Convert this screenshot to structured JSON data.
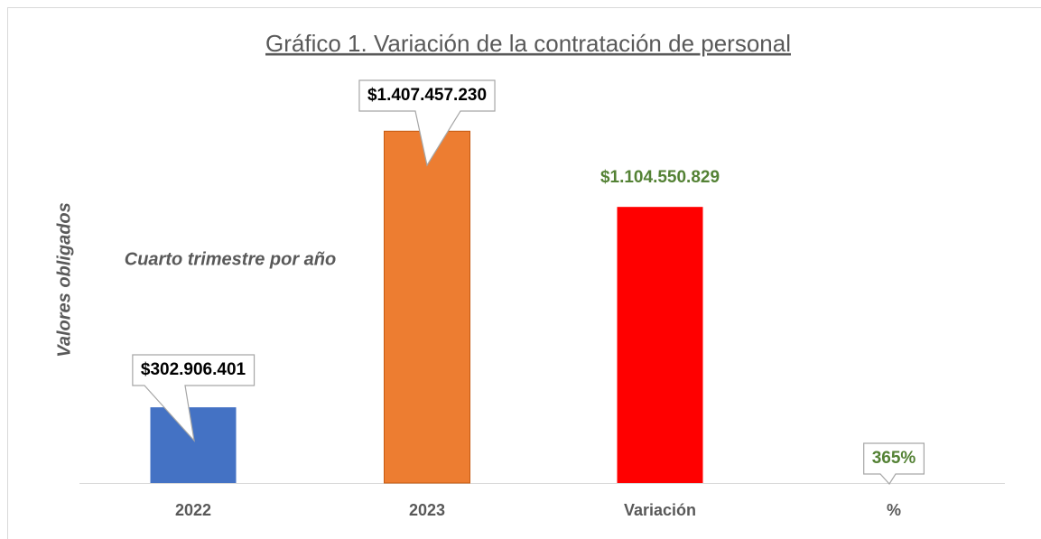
{
  "chart_data": {
    "type": "bar",
    "title": "Gráfico 1. Variación de la contratación de personal",
    "subtitle": "Cuarto trimestre por año",
    "y_label": "Valores obligados",
    "categories": [
      "2022",
      "2023",
      "Variación",
      "%"
    ],
    "values": [
      302906401,
      1407457230,
      1104550829,
      365
    ],
    "value_labels": [
      "$302.906.401",
      "$1.407.457.230",
      "$1.104.550.829",
      "365%"
    ],
    "colors": [
      "#4472c4",
      "#ed7d31",
      "#ff0000",
      "#70ad47"
    ],
    "label_colors": [
      "#000000",
      "#000000",
      "#548235",
      "#548235"
    ],
    "ylim": [
      0,
      1600000000
    ]
  }
}
